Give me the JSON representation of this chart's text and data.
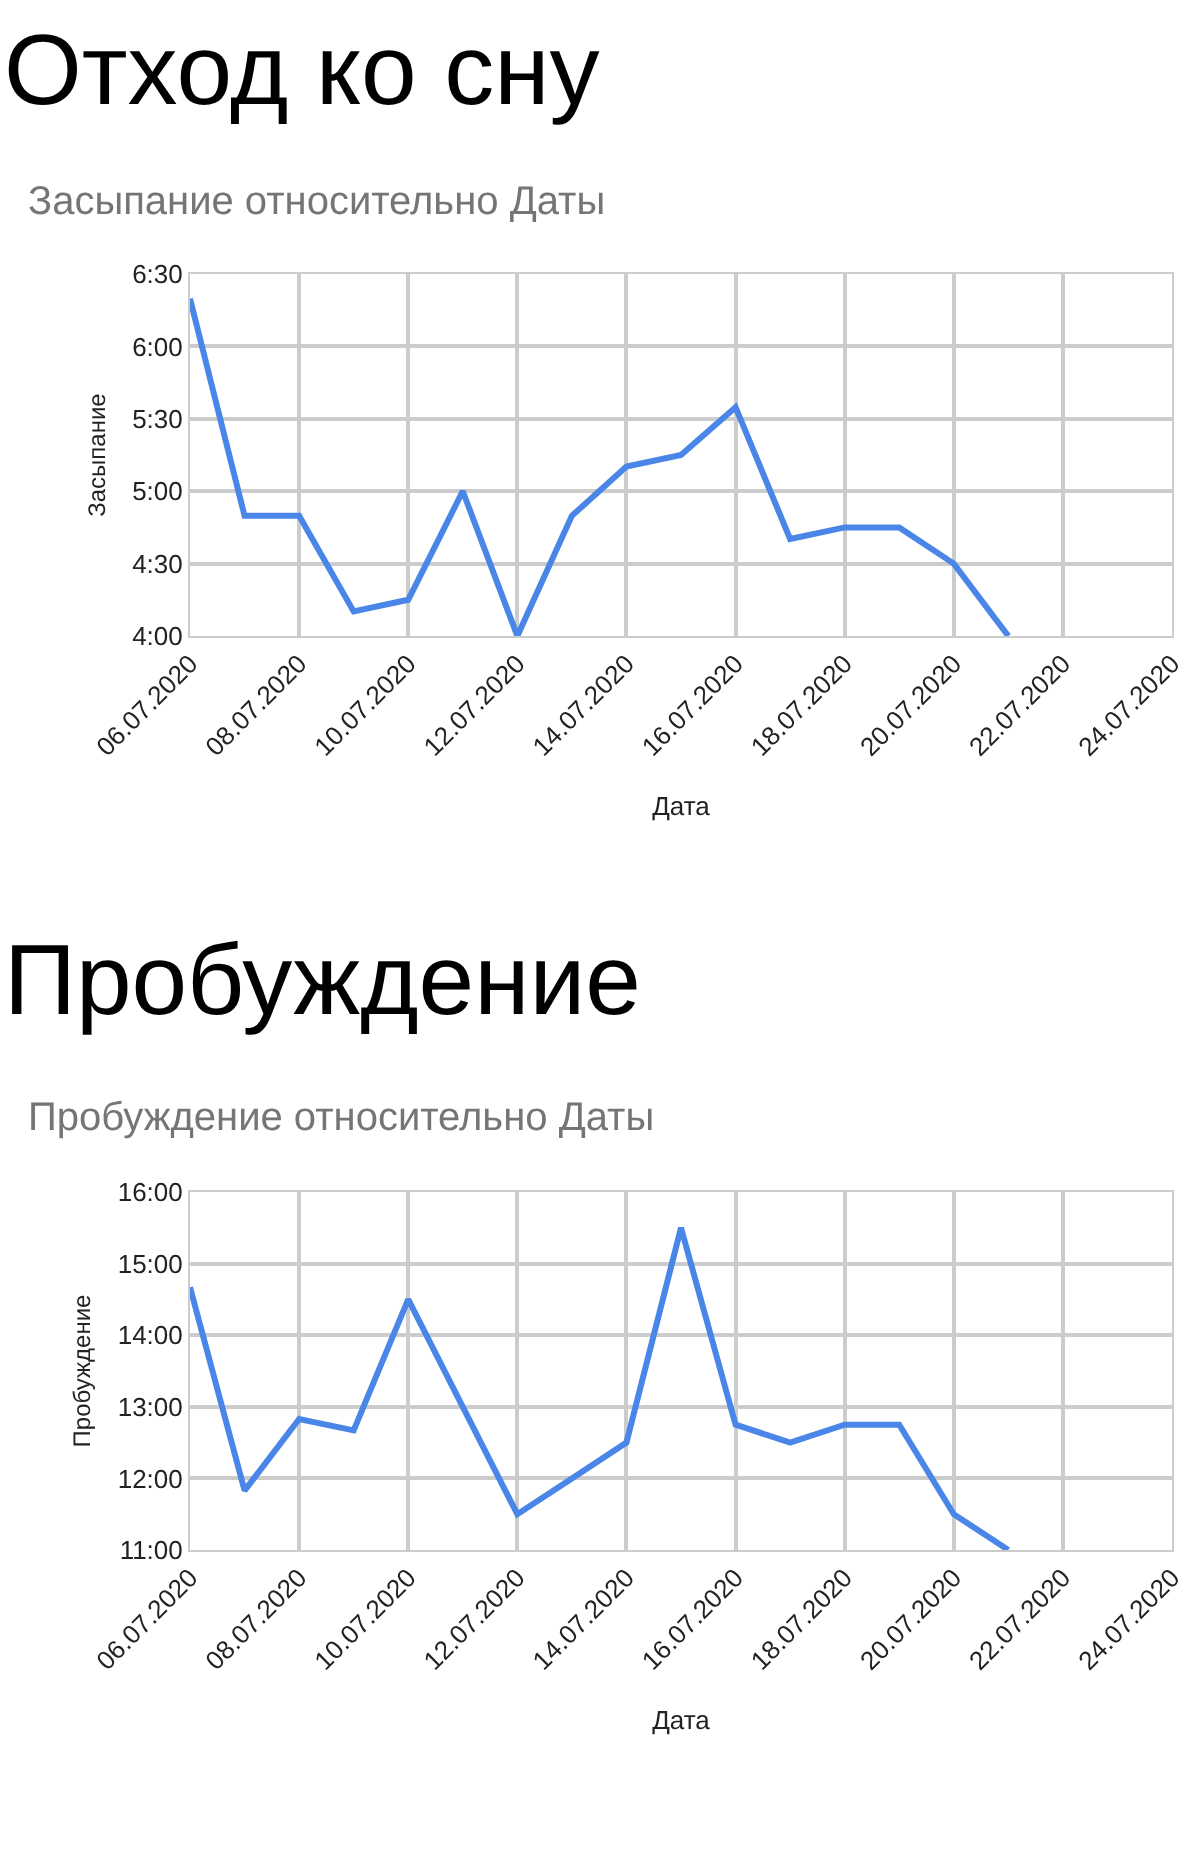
{
  "chart_data": [
    {
      "type": "line",
      "title": "Отход ко сну",
      "subtitle": "Засыпание относительно Даты",
      "xlabel": "Дата",
      "ylabel": "Засыпание",
      "x": [
        "2020-07-06",
        "2020-07-07",
        "2020-07-08",
        "2020-07-09",
        "2020-07-10",
        "2020-07-11",
        "2020-07-12",
        "2020-07-13",
        "2020-07-14",
        "2020-07-15",
        "2020-07-16",
        "2020-07-17",
        "2020-07-18",
        "2020-07-19",
        "2020-07-20",
        "2020-07-21"
      ],
      "series": [
        {
          "color": "#4a86e8",
          "values": [
            6.33,
            4.83,
            4.83,
            4.17,
            4.25,
            5.0,
            4.0,
            4.83,
            5.17,
            5.25,
            5.58,
            4.67,
            4.75,
            4.75,
            4.5,
            4.0
          ]
        }
      ],
      "xlim": [
        "2020-07-06",
        "2020-07-24"
      ],
      "xticks": [
        {
          "value": "2020-07-06",
          "label": "06.07.2020"
        },
        {
          "value": "2020-07-08",
          "label": "08.07.2020"
        },
        {
          "value": "2020-07-10",
          "label": "10.07.2020"
        },
        {
          "value": "2020-07-12",
          "label": "12.07.2020"
        },
        {
          "value": "2020-07-14",
          "label": "14.07.2020"
        },
        {
          "value": "2020-07-16",
          "label": "16.07.2020"
        },
        {
          "value": "2020-07-18",
          "label": "18.07.2020"
        },
        {
          "value": "2020-07-20",
          "label": "20.07.2020"
        },
        {
          "value": "2020-07-22",
          "label": "22.07.2020"
        },
        {
          "value": "2020-07-24",
          "label": "24.07.2020"
        }
      ],
      "ylim": [
        4,
        6.5
      ],
      "yticks": [
        {
          "value": 4,
          "label": "4:00"
        },
        {
          "value": 4.5,
          "label": "4:30"
        },
        {
          "value": 5,
          "label": "5:00"
        },
        {
          "value": 5.5,
          "label": "5:30"
        },
        {
          "value": 6,
          "label": "6:00"
        },
        {
          "value": 6.5,
          "label": "6:30"
        }
      ],
      "grid": true,
      "marker": "none",
      "line_style": "solid"
    },
    {
      "type": "line",
      "title": "Пробуждение",
      "subtitle": "Пробуждение относительно Даты",
      "xlabel": "Дата",
      "ylabel": "Пробуждение",
      "x": [
        "2020-07-06",
        "2020-07-07",
        "2020-07-08",
        "2020-07-09",
        "2020-07-10",
        "2020-07-11",
        "2020-07-12",
        "2020-07-13",
        "2020-07-14",
        "2020-07-15",
        "2020-07-16",
        "2020-07-17",
        "2020-07-18",
        "2020-07-19",
        "2020-07-20",
        "2020-07-21"
      ],
      "series": [
        {
          "color": "#4a86e8",
          "values": [
            14.67,
            11.83,
            12.83,
            12.67,
            14.5,
            13.0,
            11.5,
            12.0,
            12.5,
            15.5,
            12.75,
            12.5,
            12.75,
            12.75,
            11.5,
            11.0
          ]
        }
      ],
      "xlim": [
        "2020-07-06",
        "2020-07-24"
      ],
      "xticks": [
        {
          "value": "2020-07-06",
          "label": "06.07.2020"
        },
        {
          "value": "2020-07-08",
          "label": "08.07.2020"
        },
        {
          "value": "2020-07-10",
          "label": "10.07.2020"
        },
        {
          "value": "2020-07-12",
          "label": "12.07.2020"
        },
        {
          "value": "2020-07-14",
          "label": "14.07.2020"
        },
        {
          "value": "2020-07-16",
          "label": "16.07.2020"
        },
        {
          "value": "2020-07-18",
          "label": "18.07.2020"
        },
        {
          "value": "2020-07-20",
          "label": "20.07.2020"
        },
        {
          "value": "2020-07-22",
          "label": "22.07.2020"
        },
        {
          "value": "2020-07-24",
          "label": "24.07.2020"
        }
      ],
      "ylim": [
        11,
        16
      ],
      "yticks": [
        {
          "value": 11,
          "label": "11:00"
        },
        {
          "value": 12,
          "label": "12:00"
        },
        {
          "value": 13,
          "label": "13:00"
        },
        {
          "value": 14,
          "label": "14:00"
        },
        {
          "value": 15,
          "label": "15:00"
        },
        {
          "value": 16,
          "label": "16:00"
        }
      ],
      "grid": true,
      "marker": "none",
      "line_style": "solid"
    }
  ]
}
